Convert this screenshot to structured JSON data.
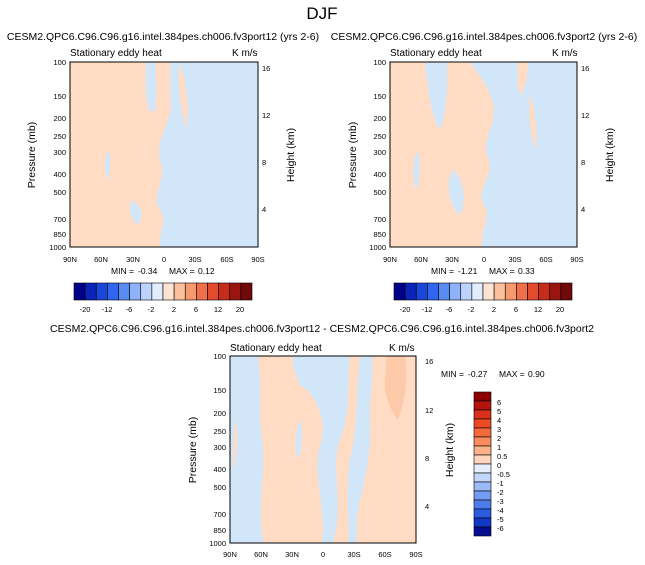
{
  "page_title": "DJF",
  "colors": {
    "warm": "#ffdcc3",
    "warm2": "#fccaa8",
    "cool": "#d2e6fa",
    "frame": "#000000"
  },
  "chart_data": [
    {
      "type": "contour",
      "title": "CESM2.QPC6.C96.C96.g16.intel.384pes.ch006.fv3port12 (yrs 2-6)",
      "field_label": "Stationary eddy heat",
      "units": "K m/s",
      "ylabel": "Pressure (mb)",
      "ylabel_right": "Height (km)",
      "x_ticks": [
        "90N",
        "60N",
        "30N",
        "0",
        "30S",
        "60S",
        "90S"
      ],
      "y_ticks": [
        "100",
        "150",
        "200",
        "250",
        "300",
        "400",
        "500",
        "700",
        "850",
        "1000"
      ],
      "y_right_ticks": [
        "16",
        "12",
        "8",
        "4"
      ],
      "ylim": [
        1000,
        100
      ],
      "min": "-0.34",
      "max": "0.12",
      "min_label": "MIN =",
      "max_label": "MAX =",
      "colorbar_levels": [
        "-20",
        "-12",
        "-6",
        "-2",
        "2",
        "6",
        "12",
        "20"
      ],
      "colorbar_colors": [
        "#00008b",
        "#0b23b8",
        "#1a47d8",
        "#2f66ef",
        "#5a8bf5",
        "#8fb2f8",
        "#bcd3fb",
        "#e1ecfd",
        "#fde4d2",
        "#fbc09c",
        "#f79a72",
        "#f0704b",
        "#e24b2d",
        "#c62c19",
        "#9a1510",
        "#6f0a0a"
      ]
    },
    {
      "type": "contour",
      "title": "CESM2.QPC6.C96.C96.g16.intel.384pes.ch006.fv3port2 (yrs 2-6)",
      "field_label": "Stationary eddy heat",
      "units": "K m/s",
      "ylabel": "Pressure (mb)",
      "ylabel_right": "Height (km)",
      "x_ticks": [
        "90N",
        "60N",
        "30N",
        "0",
        "30S",
        "60S",
        "90S"
      ],
      "y_ticks": [
        "100",
        "150",
        "200",
        "250",
        "300",
        "400",
        "500",
        "700",
        "850",
        "1000"
      ],
      "y_right_ticks": [
        "16",
        "12",
        "8",
        "4"
      ],
      "ylim": [
        1000,
        100
      ],
      "min": "-1.21",
      "max": "0.33",
      "min_label": "MIN =",
      "max_label": "MAX =",
      "colorbar_levels": [
        "-20",
        "-12",
        "-6",
        "-2",
        "2",
        "6",
        "12",
        "20"
      ],
      "colorbar_colors": [
        "#00008b",
        "#0b23b8",
        "#1a47d8",
        "#2f66ef",
        "#5a8bf5",
        "#8fb2f8",
        "#bcd3fb",
        "#e1ecfd",
        "#fde4d2",
        "#fbc09c",
        "#f79a72",
        "#f0704b",
        "#e24b2d",
        "#c62c19",
        "#9a1510",
        "#6f0a0a"
      ]
    },
    {
      "type": "contour",
      "title": "CESM2.QPC6.C96.C96.g16.intel.384pes.ch006.fv3port12 - CESM2.QPC6.C96.C96.g16.intel.384pes.ch006.fv3port2",
      "field_label": "Stationary eddy heat",
      "units": "K m/s",
      "ylabel": "Pressure (mb)",
      "ylabel_right": "Height (km)",
      "x_ticks": [
        "90N",
        "60N",
        "30N",
        "0",
        "30S",
        "60S",
        "90S"
      ],
      "y_ticks": [
        "100",
        "150",
        "200",
        "250",
        "300",
        "400",
        "500",
        "700",
        "850",
        "1000"
      ],
      "y_right_ticks": [
        "16",
        "12",
        "8",
        "4"
      ],
      "ylim": [
        1000,
        100
      ],
      "min": "-0.27",
      "max": "0.90",
      "min_label": "MIN =",
      "max_label": "MAX =",
      "colorbar_levels": [
        "6",
        "5",
        "4",
        "3",
        "2",
        "1",
        "0.5",
        "0",
        "-0.5",
        "-1",
        "-2",
        "-3",
        "-4",
        "-5",
        "-6"
      ],
      "colorbar_colors": [
        "#8b0000",
        "#b5140c",
        "#d8301a",
        "#ec4a23",
        "#f56a3c",
        "#f88c5e",
        "#fbb189",
        "#fdd6bd",
        "#e6f0fd",
        "#c3d6fb",
        "#9bbaf8",
        "#739cf3",
        "#4d7ded",
        "#2c5be2",
        "#1237c6",
        "#050f8e"
      ]
    }
  ]
}
